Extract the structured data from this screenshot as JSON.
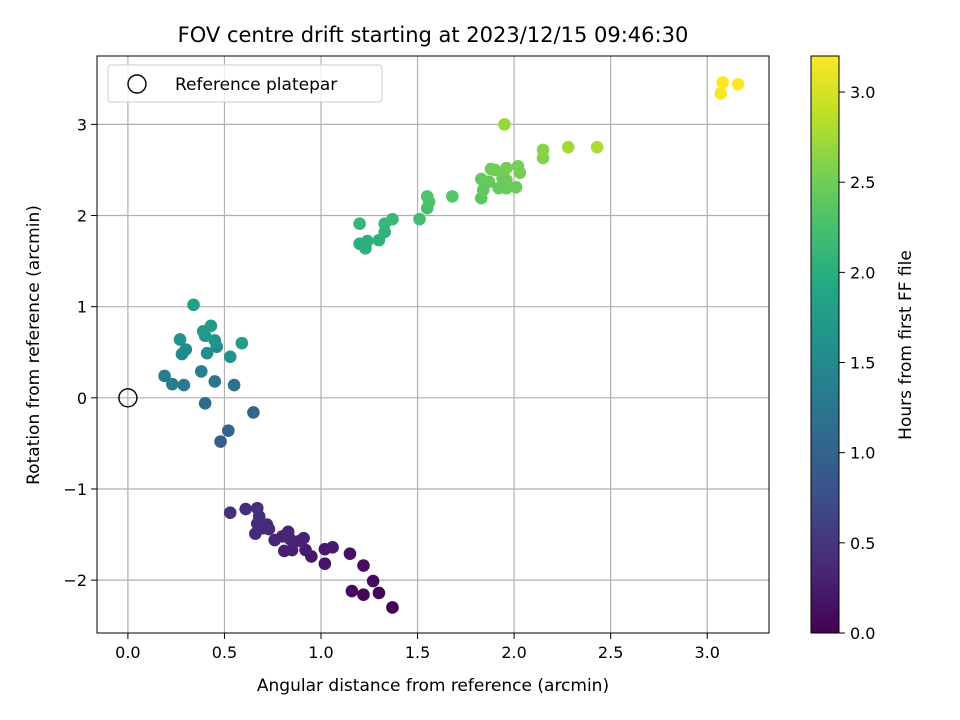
{
  "chart_data": {
    "type": "scatter",
    "title": "FOV centre drift starting at 2023/12/15 09:46:30",
    "xlabel": "Angular distance from reference (arcmin)",
    "ylabel": "Rotation from reference (arcmin)",
    "xlim": [
      -0.16,
      3.32
    ],
    "ylim": [
      -2.58,
      3.75
    ],
    "xticks": [
      0.0,
      0.5,
      1.0,
      1.5,
      2.0,
      2.5,
      3.0
    ],
    "xtick_labels": [
      "0.0",
      "0.5",
      "1.0",
      "1.5",
      "2.0",
      "2.5",
      "3.0"
    ],
    "yticks": [
      -2,
      -1,
      0,
      1,
      2,
      3
    ],
    "ytick_labels": [
      "−2",
      "−1",
      "0",
      "1",
      "2",
      "3"
    ],
    "grid": true,
    "legend": {
      "placement": "upper-left",
      "entries": [
        "Reference platepar"
      ]
    },
    "reference_point": {
      "name": "Reference platepar",
      "x": 0.0,
      "y": 0.0
    },
    "colorbar": {
      "label": "Hours from first FF file",
      "colormap": "viridis",
      "range": [
        0.0,
        3.2
      ],
      "ticks": [
        0.0,
        0.5,
        1.0,
        1.5,
        2.0,
        2.5,
        3.0
      ],
      "tick_labels": [
        "0.0",
        "0.5",
        "1.0",
        "1.5",
        "2.0",
        "2.5",
        "3.0"
      ]
    },
    "points": [
      {
        "x": 1.37,
        "y": -2.3,
        "c": 0.0
      },
      {
        "x": 1.3,
        "y": -2.14,
        "c": 0.03
      },
      {
        "x": 1.22,
        "y": -2.16,
        "c": 0.05
      },
      {
        "x": 1.16,
        "y": -2.12,
        "c": 0.06
      },
      {
        "x": 1.27,
        "y": -2.01,
        "c": 0.08
      },
      {
        "x": 1.22,
        "y": -1.84,
        "c": 0.12
      },
      {
        "x": 1.15,
        "y": -1.71,
        "c": 0.15
      },
      {
        "x": 1.02,
        "y": -1.82,
        "c": 0.18
      },
      {
        "x": 0.95,
        "y": -1.74,
        "c": 0.2
      },
      {
        "x": 1.02,
        "y": -1.66,
        "c": 0.22
      },
      {
        "x": 1.06,
        "y": -1.64,
        "c": 0.24
      },
      {
        "x": 0.92,
        "y": -1.67,
        "c": 0.26
      },
      {
        "x": 0.85,
        "y": -1.67,
        "c": 0.27
      },
      {
        "x": 0.81,
        "y": -1.68,
        "c": 0.28
      },
      {
        "x": 0.91,
        "y": -1.54,
        "c": 0.3
      },
      {
        "x": 0.89,
        "y": -1.57,
        "c": 0.31
      },
      {
        "x": 0.84,
        "y": -1.55,
        "c": 0.32
      },
      {
        "x": 0.8,
        "y": -1.52,
        "c": 0.33
      },
      {
        "x": 0.83,
        "y": -1.47,
        "c": 0.34
      },
      {
        "x": 0.76,
        "y": -1.56,
        "c": 0.35
      },
      {
        "x": 0.73,
        "y": -1.44,
        "c": 0.36
      },
      {
        "x": 0.72,
        "y": -1.39,
        "c": 0.37
      },
      {
        "x": 0.7,
        "y": -1.43,
        "c": 0.38
      },
      {
        "x": 0.66,
        "y": -1.49,
        "c": 0.39
      },
      {
        "x": 0.67,
        "y": -1.38,
        "c": 0.4
      },
      {
        "x": 0.68,
        "y": -1.3,
        "c": 0.41
      },
      {
        "x": 0.61,
        "y": -1.22,
        "c": 0.42
      },
      {
        "x": 0.67,
        "y": -1.21,
        "c": 0.43
      },
      {
        "x": 0.53,
        "y": -1.26,
        "c": 0.45
      },
      {
        "x": 0.48,
        "y": -0.48,
        "c": 0.95
      },
      {
        "x": 0.52,
        "y": -0.36,
        "c": 1.0
      },
      {
        "x": 0.65,
        "y": -0.16,
        "c": 1.05
      },
      {
        "x": 0.4,
        "y": -0.06,
        "c": 1.1
      },
      {
        "x": 0.55,
        "y": 0.14,
        "c": 1.2
      },
      {
        "x": 0.45,
        "y": 0.18,
        "c": 1.25
      },
      {
        "x": 0.29,
        "y": 0.14,
        "c": 1.3
      },
      {
        "x": 0.23,
        "y": 0.15,
        "c": 1.33
      },
      {
        "x": 0.19,
        "y": 0.24,
        "c": 1.36
      },
      {
        "x": 0.38,
        "y": 0.29,
        "c": 1.4
      },
      {
        "x": 0.28,
        "y": 0.48,
        "c": 1.5
      },
      {
        "x": 0.3,
        "y": 0.53,
        "c": 1.52
      },
      {
        "x": 0.41,
        "y": 0.49,
        "c": 1.55
      },
      {
        "x": 0.46,
        "y": 0.56,
        "c": 1.58
      },
      {
        "x": 0.53,
        "y": 0.45,
        "c": 1.62
      },
      {
        "x": 0.27,
        "y": 0.64,
        "c": 1.65
      },
      {
        "x": 0.45,
        "y": 0.63,
        "c": 1.66
      },
      {
        "x": 0.4,
        "y": 0.68,
        "c": 1.7
      },
      {
        "x": 0.39,
        "y": 0.73,
        "c": 1.72
      },
      {
        "x": 0.43,
        "y": 0.79,
        "c": 1.75
      },
      {
        "x": 0.59,
        "y": 0.6,
        "c": 1.78
      },
      {
        "x": 0.34,
        "y": 1.02,
        "c": 1.8
      },
      {
        "x": 1.2,
        "y": 1.69,
        "c": 2.0
      },
      {
        "x": 1.23,
        "y": 1.64,
        "c": 2.02
      },
      {
        "x": 1.24,
        "y": 1.72,
        "c": 2.03
      },
      {
        "x": 1.3,
        "y": 1.73,
        "c": 2.05
      },
      {
        "x": 1.33,
        "y": 1.82,
        "c": 2.07
      },
      {
        "x": 1.2,
        "y": 1.91,
        "c": 2.1
      },
      {
        "x": 1.33,
        "y": 1.91,
        "c": 2.12
      },
      {
        "x": 1.37,
        "y": 1.96,
        "c": 2.15
      },
      {
        "x": 1.51,
        "y": 1.96,
        "c": 2.2
      },
      {
        "x": 1.55,
        "y": 2.08,
        "c": 2.25
      },
      {
        "x": 1.56,
        "y": 2.15,
        "c": 2.3
      },
      {
        "x": 1.55,
        "y": 2.21,
        "c": 2.32
      },
      {
        "x": 1.68,
        "y": 2.21,
        "c": 2.35
      },
      {
        "x": 1.83,
        "y": 2.19,
        "c": 2.38
      },
      {
        "x": 1.84,
        "y": 2.28,
        "c": 2.4
      },
      {
        "x": 1.83,
        "y": 2.4,
        "c": 2.42
      },
      {
        "x": 1.87,
        "y": 2.37,
        "c": 2.43
      },
      {
        "x": 1.92,
        "y": 2.3,
        "c": 2.44
      },
      {
        "x": 1.96,
        "y": 2.3,
        "c": 2.45
      },
      {
        "x": 2.01,
        "y": 2.31,
        "c": 2.46
      },
      {
        "x": 1.96,
        "y": 2.39,
        "c": 2.47
      },
      {
        "x": 1.94,
        "y": 2.41,
        "c": 2.48
      },
      {
        "x": 1.88,
        "y": 2.51,
        "c": 2.49
      },
      {
        "x": 1.9,
        "y": 2.5,
        "c": 2.5
      },
      {
        "x": 1.96,
        "y": 2.52,
        "c": 2.51
      },
      {
        "x": 2.02,
        "y": 2.54,
        "c": 2.52
      },
      {
        "x": 2.03,
        "y": 2.47,
        "c": 2.53
      },
      {
        "x": 2.15,
        "y": 2.63,
        "c": 2.6
      },
      {
        "x": 2.15,
        "y": 2.72,
        "c": 2.62
      },
      {
        "x": 1.95,
        "y": 3.0,
        "c": 2.7
      },
      {
        "x": 2.28,
        "y": 2.75,
        "c": 2.75
      },
      {
        "x": 2.43,
        "y": 2.75,
        "c": 2.8
      },
      {
        "x": 3.07,
        "y": 3.34,
        "c": 3.18
      },
      {
        "x": 3.08,
        "y": 3.46,
        "c": 3.2
      },
      {
        "x": 3.16,
        "y": 3.44,
        "c": 3.21
      }
    ]
  }
}
